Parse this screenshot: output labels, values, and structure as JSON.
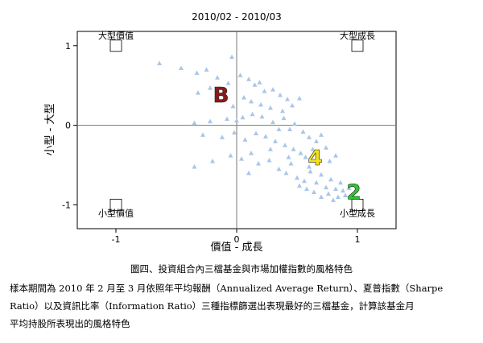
{
  "chart_data": {
    "type": "scatter",
    "title": "2010/02 - 2010/03",
    "xlabel": "價值 - 成長",
    "ylabel": "小型 - 大型",
    "xlim": [
      -1.32,
      1.32
    ],
    "ylim": [
      -1.3,
      1.18
    ],
    "xticks": [
      -1,
      0,
      1
    ],
    "yticks": [
      -1,
      0,
      1
    ],
    "tick_labels_x": [
      "-1",
      "0",
      "1"
    ],
    "tick_labels_y": [
      "-1",
      "0",
      "1"
    ],
    "reference_lines": {
      "x": 0,
      "y": 0
    },
    "grid": false,
    "colors": {
      "points": "#a9c6e8",
      "axes": "#000000",
      "ref_lines": "#777777"
    },
    "corner_labels": [
      {
        "text": "大型價值",
        "x": -1,
        "y": 1
      },
      {
        "text": "大型成長",
        "x": 1,
        "y": 1
      },
      {
        "text": "小型價值",
        "x": -1,
        "y": -1
      },
      {
        "text": "小型成長",
        "x": 1,
        "y": -1
      }
    ],
    "annotations": [
      {
        "text": "B",
        "x": -0.13,
        "y": 0.38,
        "color": "#8b1a1a"
      },
      {
        "text": "4",
        "x": 0.65,
        "y": -0.41,
        "color": "#f2e21c"
      },
      {
        "text": "2",
        "x": 0.97,
        "y": -0.84,
        "color": "#2ec72e"
      }
    ],
    "points": [
      [
        -0.64,
        0.78
      ],
      [
        -0.46,
        0.72
      ],
      [
        -0.33,
        0.66
      ],
      [
        -0.25,
        0.7
      ],
      [
        -0.04,
        0.86
      ],
      [
        -0.16,
        0.6
      ],
      [
        -0.07,
        0.53
      ],
      [
        -0.32,
        0.41
      ],
      [
        -0.22,
        0.47
      ],
      [
        -0.1,
        0.45
      ],
      [
        0.03,
        0.63
      ],
      [
        0.1,
        0.58
      ],
      [
        0.15,
        0.51
      ],
      [
        0.19,
        0.54
      ],
      [
        0.23,
        0.43
      ],
      [
        0.3,
        0.45
      ],
      [
        0.36,
        0.38
      ],
      [
        0.42,
        0.33
      ],
      [
        0.46,
        0.25
      ],
      [
        0.52,
        0.34
      ],
      [
        0.06,
        0.35
      ],
      [
        0.12,
        0.3
      ],
      [
        0.2,
        0.26
      ],
      [
        0.28,
        0.22
      ],
      [
        -0.03,
        0.24
      ],
      [
        -0.35,
        0.03
      ],
      [
        -0.22,
        0.05
      ],
      [
        -0.08,
        0.08
      ],
      [
        0.0,
        0.06
      ],
      [
        0.05,
        0.1
      ],
      [
        0.13,
        0.14
      ],
      [
        0.21,
        0.11
      ],
      [
        0.3,
        0.04
      ],
      [
        0.39,
        0.09
      ],
      [
        0.44,
        -0.05
      ],
      [
        0.48,
        0.02
      ],
      [
        0.55,
        -0.08
      ],
      [
        0.6,
        -0.15
      ],
      [
        0.66,
        -0.2
      ],
      [
        0.7,
        -0.12
      ],
      [
        -0.28,
        -0.12
      ],
      [
        -0.12,
        -0.15
      ],
      [
        -0.02,
        -0.09
      ],
      [
        0.07,
        -0.18
      ],
      [
        0.16,
        -0.1
      ],
      [
        0.24,
        -0.14
      ],
      [
        0.32,
        -0.2
      ],
      [
        0.4,
        -0.25
      ],
      [
        0.47,
        -0.3
      ],
      [
        0.53,
        -0.35
      ],
      [
        0.57,
        -0.4
      ],
      [
        0.63,
        -0.3
      ],
      [
        0.74,
        -0.28
      ],
      [
        0.77,
        -0.45
      ],
      [
        0.82,
        -0.38
      ],
      [
        -0.35,
        -0.52
      ],
      [
        -0.2,
        -0.45
      ],
      [
        -0.05,
        -0.38
      ],
      [
        0.04,
        -0.42
      ],
      [
        0.12,
        -0.35
      ],
      [
        0.18,
        -0.48
      ],
      [
        0.27,
        -0.44
      ],
      [
        0.35,
        -0.55
      ],
      [
        0.41,
        -0.6
      ],
      [
        0.45,
        -0.48
      ],
      [
        0.5,
        -0.66
      ],
      [
        0.56,
        -0.7
      ],
      [
        0.61,
        -0.58
      ],
      [
        0.66,
        -0.72
      ],
      [
        0.7,
        -0.62
      ],
      [
        0.74,
        -0.78
      ],
      [
        0.78,
        -0.68
      ],
      [
        0.82,
        -0.8
      ],
      [
        0.86,
        -0.72
      ],
      [
        0.9,
        -0.88
      ],
      [
        0.7,
        -0.9
      ],
      [
        0.76,
        -0.86
      ],
      [
        0.8,
        -0.94
      ],
      [
        0.58,
        -0.8
      ],
      [
        0.64,
        -0.84
      ],
      [
        0.52,
        -0.76
      ],
      [
        0.88,
        -0.82
      ],
      [
        0.93,
        -0.79
      ],
      [
        0.84,
        -0.9
      ],
      [
        0.6,
        -0.52
      ],
      [
        0.35,
        -0.05
      ],
      [
        0.28,
        -0.3
      ],
      [
        0.1,
        -0.6
      ],
      [
        0.43,
        -0.4
      ],
      [
        0.38,
        0.18
      ]
    ]
  },
  "figure": {
    "caption": "圖四、投資組合內三檔基金與市場加權指數的風格特色",
    "note_parts": [
      "樣本期間為 2010 年 2 月至 3 月依照年平均報酬（Annualized Average Return）、夏普指數（Sharpe",
      "Ratio）以及資訊比率（Information Ratio）三種指標篩選出表現最好的三檔基金，計算該基金月",
      "平均持股所表現出的風格特色"
    ]
  }
}
